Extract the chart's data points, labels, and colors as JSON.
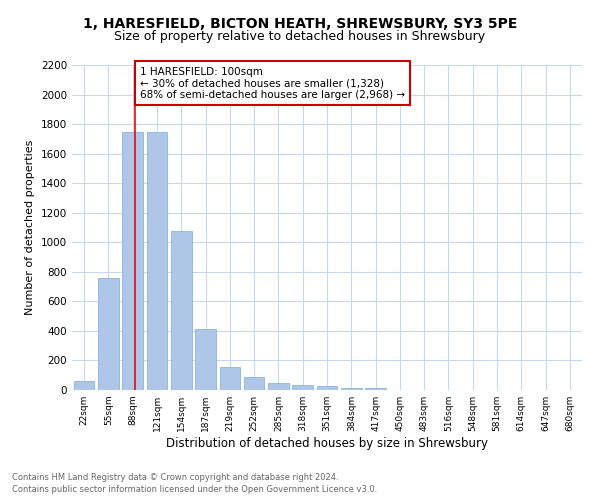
{
  "title": "1, HARESFIELD, BICTON HEATH, SHREWSBURY, SY3 5PE",
  "subtitle": "Size of property relative to detached houses in Shrewsbury",
  "xlabel": "Distribution of detached houses by size in Shrewsbury",
  "ylabel": "Number of detached properties",
  "bar_color": "#aec6e8",
  "bar_edge_color": "#7aadd4",
  "grid_color": "#c8d8e8",
  "background_color": "#ffffff",
  "categories": [
    "22sqm",
    "55sqm",
    "88sqm",
    "121sqm",
    "154sqm",
    "187sqm",
    "219sqm",
    "252sqm",
    "285sqm",
    "318sqm",
    "351sqm",
    "384sqm",
    "417sqm",
    "450sqm",
    "483sqm",
    "516sqm",
    "548sqm",
    "581sqm",
    "614sqm",
    "647sqm",
    "680sqm"
  ],
  "values": [
    60,
    760,
    1745,
    1745,
    1075,
    415,
    155,
    85,
    45,
    35,
    25,
    15,
    15,
    0,
    0,
    0,
    0,
    0,
    0,
    0,
    0
  ],
  "ylim": [
    0,
    2200
  ],
  "yticks": [
    0,
    200,
    400,
    600,
    800,
    1000,
    1200,
    1400,
    1600,
    1800,
    2000,
    2200
  ],
  "red_line_x": 2.09,
  "annotation_text": "1 HARESFIELD: 100sqm\n← 30% of detached houses are smaller (1,328)\n68% of semi-detached houses are larger (2,968) →",
  "footnote1": "Contains HM Land Registry data © Crown copyright and database right 2024.",
  "footnote2": "Contains public sector information licensed under the Open Government Licence v3.0.",
  "title_fontsize": 10,
  "subtitle_fontsize": 9,
  "ylabel_fontsize": 8,
  "xlabel_fontsize": 8.5,
  "annotation_box_edge_color": "#cc0000",
  "annotation_fontsize": 7.5,
  "footnote_fontsize": 6,
  "footnote_color": "#666666"
}
